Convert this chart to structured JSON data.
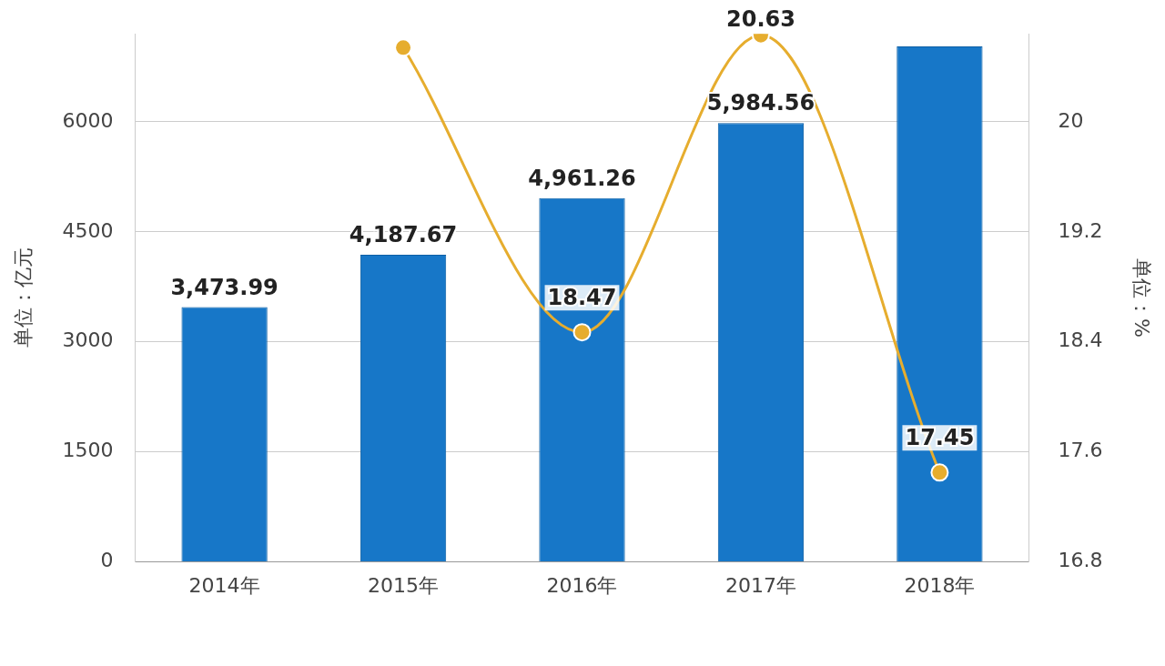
{
  "chart_data": {
    "type": "bar",
    "categories": [
      "2014年",
      "2015年",
      "2016年",
      "2017年",
      "2018年"
    ],
    "ylabel": "单位：亿元",
    "y2label": "单位：%",
    "series": [
      {
        "color": "#1777c8",
        "values": [
          3473.99,
          4187.67,
          4961.26,
          5984.56,
          7030
        ],
        "value_labels": [
          "3,473.99",
          "4,187.67",
          "4,961.26",
          "5,984.56",
          null
        ]
      },
      {
        "type": "line",
        "axis": "y2",
        "color": "#e6ad2e",
        "values": [
          null,
          20.54,
          18.47,
          20.63,
          17.45
        ],
        "value_labels": [
          null,
          null,
          "18.47",
          "20.63",
          "17.45"
        ]
      }
    ],
    "ylim": [
      0,
      7200
    ],
    "yticks": [
      0,
      1500,
      3000,
      4500,
      6000
    ],
    "y2lim": [
      16.8,
      20.64
    ],
    "y2ticks": [
      16.8,
      17.6,
      18.4,
      19.2,
      20
    ],
    "grid": "y",
    "marker": "circle",
    "legend": false
  }
}
